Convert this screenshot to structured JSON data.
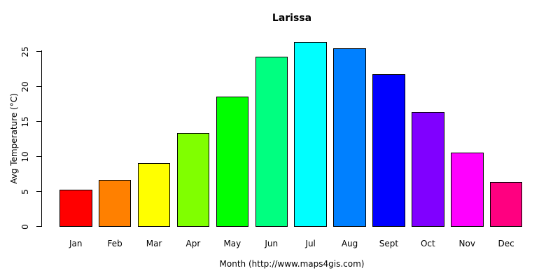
{
  "chart_data": {
    "type": "bar",
    "title": "Larissa",
    "xlabel": "Month (http://www.maps4gis.com)",
    "ylabel": "Avg Temperature (°C)",
    "categories": [
      "Jan",
      "Feb",
      "Mar",
      "Apr",
      "May",
      "Jun",
      "Jul",
      "Aug",
      "Sept",
      "Oct",
      "Nov",
      "Dec"
    ],
    "values": [
      5.3,
      6.7,
      9.1,
      13.4,
      18.6,
      24.3,
      26.4,
      25.5,
      21.8,
      16.4,
      10.6,
      6.4
    ],
    "bar_colors": [
      "#FF0000",
      "#FF8000",
      "#FFFF00",
      "#80FF00",
      "#00FF00",
      "#00FF80",
      "#00FFFF",
      "#0080FF",
      "#0000FF",
      "#8000FF",
      "#FF00FF",
      "#FF0080"
    ],
    "bar_border_color": "#000000",
    "yticks": [
      0,
      5,
      10,
      15,
      20,
      25
    ],
    "ylim": [
      0,
      26.4
    ],
    "grid": false,
    "legend_position": "none",
    "background_color": "#FFFFFF",
    "text_color": "#000000"
  }
}
